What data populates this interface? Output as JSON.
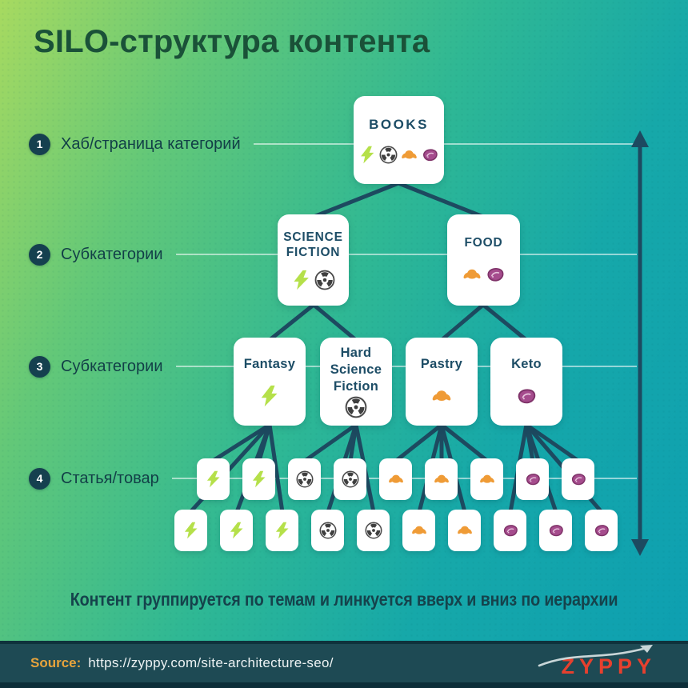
{
  "title": "SILO-структура контента",
  "levels": [
    {
      "num": "1",
      "label": "Хаб/страница категорий"
    },
    {
      "num": "2",
      "label": "Субкатегории"
    },
    {
      "num": "3",
      "label": "Субкатегории"
    },
    {
      "num": "4",
      "label": "Статья/товар"
    }
  ],
  "tree": {
    "root": {
      "label": "BOOKS",
      "icons": [
        "lightning",
        "radiation",
        "croissant",
        "steak"
      ]
    },
    "level2": [
      {
        "label": "SCIENCE FICTION",
        "icons": [
          "lightning",
          "radiation"
        ]
      },
      {
        "label": "FOOD",
        "icons": [
          "croissant",
          "steak"
        ]
      }
    ],
    "level3": [
      {
        "label": "Fantasy",
        "icons": [
          "lightning"
        ]
      },
      {
        "label": "Hard Science Fiction",
        "icons": [
          "radiation"
        ]
      },
      {
        "label": "Pastry",
        "icons": [
          "croissant"
        ]
      },
      {
        "label": "Keto",
        "icons": [
          "steak"
        ]
      }
    ],
    "level4_row1": [
      "lightning",
      "lightning",
      "radiation",
      "radiation",
      "croissant",
      "croissant",
      "croissant",
      "steak",
      "steak"
    ],
    "level4_row2": [
      "lightning",
      "lightning",
      "lightning",
      "radiation",
      "radiation",
      "croissant",
      "croissant",
      "steak",
      "steak",
      "steak"
    ]
  },
  "caption": "Контент группируется по темам и линкуется вверх и вниз по иерархии",
  "footer": {
    "source_label": "Source:",
    "source_url": "https://zyppy.com/site-architecture-seo/",
    "logo": "ZYPPY"
  },
  "colors": {
    "background_top": "#a7da60",
    "background_bottom": "#0d9fb2",
    "navy_connector": "#1d4a60",
    "title_green": "#1a5138",
    "lightning": "#b5e04a",
    "radiation": "#4a4a4a",
    "croissant": "#ef9b36",
    "steak": "#a54c8d",
    "footer_bg": "#1e4a54",
    "source_orange": "#e8a43c",
    "logo_red": "#e6402e"
  }
}
